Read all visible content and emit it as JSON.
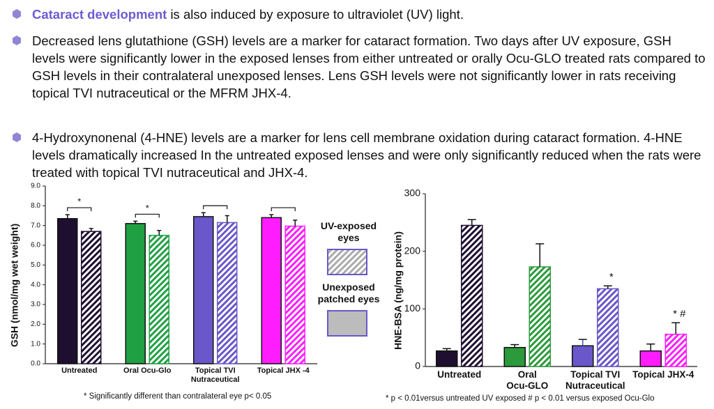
{
  "bullets": [
    {
      "highlight": "Cataract development",
      "text": "is also induced by exposure to ultraviolet (UV) light."
    },
    {
      "text": "Decreased lens glutathione (GSH) levels are a marker for cataract formation. Two days after UV exposure, GSH levels were significantly lower in the exposed lenses from either untreated or orally Ocu-GLO treated rats compared to GSH levels in their contralateral unexposed lenses. Lens GSH levels were not significantly lower in rats receiving topical TVI nutraceutical or the MFRM JHX-4."
    },
    {
      "text": "4-Hydroxynonenal (4-HNE) levels are a marker for lens cell membrane oxidation during cataract formation. 4-HNE levels dramatically increased In the untreated exposed lenses and were only significantly reduced when the rats were treated with topical TVI nutraceutical and JHX-4."
    }
  ],
  "legend": [
    {
      "name": "UV-exposed\neyes",
      "pattern": "hatched"
    },
    {
      "name": "Unexposed\npatched eyes",
      "pattern": "solid"
    }
  ],
  "chart_data": [
    {
      "type": "bar",
      "y_label": "GSH (nmol/mg wet weight)",
      "categories": [
        "Untreated",
        "Oral Ocu-Glo",
        "Topical TVI\nNutraceutical",
        "Topical JHX -4"
      ],
      "colors": [
        "#1e0f30",
        "#1fa043",
        "#6a57c9",
        "#ff1dff"
      ],
      "series": [
        {
          "pattern": "solid",
          "values": [
            7.35,
            7.1,
            7.45,
            7.4
          ],
          "errors": [
            0.2,
            0.12,
            0.2,
            0.15
          ]
        },
        {
          "pattern": "hatched",
          "values": [
            6.7,
            6.5,
            7.15,
            6.97
          ],
          "errors": [
            0.15,
            0.25,
            0.35,
            0.3
          ]
        }
      ],
      "significance": [
        "*",
        "*",
        null,
        null
      ],
      "ylim": [
        0,
        9
      ],
      "yticks": [
        {
          "value": 0,
          "label": "0.0"
        },
        {
          "value": 1,
          "label": "1.0"
        },
        {
          "value": 2,
          "label": "2.0"
        },
        {
          "value": 3,
          "label": "3.0"
        },
        {
          "value": 4,
          "label": "4.0"
        },
        {
          "value": 5,
          "label": "5.0"
        },
        {
          "value": 6,
          "label": "6.0"
        },
        {
          "value": 7,
          "label": "7.0"
        },
        {
          "value": 8,
          "label": "8.0"
        },
        {
          "value": 9,
          "label": "9.0"
        }
      ],
      "footnote": "* Significantly different than contralateral eye p< 0.05"
    },
    {
      "type": "bar",
      "y_label": "HNE-BSA (ng/mg protein)",
      "categories": [
        "Untreated",
        "Oral\nOcu-GLO",
        "Topical TVI\nNutraceutical",
        "Topical JHX-4"
      ],
      "colors": [
        "#1e0f30",
        "#2a9a3a",
        "#6a57c9",
        "#ff1dff"
      ],
      "series": [
        {
          "pattern": "solid",
          "values": [
            27,
            33,
            36,
            27
          ],
          "errors": [
            4,
            5,
            11,
            12
          ]
        },
        {
          "pattern": "hatched",
          "values": [
            245,
            173,
            135,
            56
          ],
          "errors": [
            10,
            40,
            5,
            20
          ],
          "annotations": [
            null,
            null,
            "*",
            "* #"
          ]
        }
      ],
      "ylim": [
        0,
        300
      ],
      "yticks": [
        0,
        100,
        200,
        300
      ],
      "footnote": "* p < 0.01versus untreated UV exposed  # p < 0.01 versus exposed Ocu-Glo"
    }
  ]
}
